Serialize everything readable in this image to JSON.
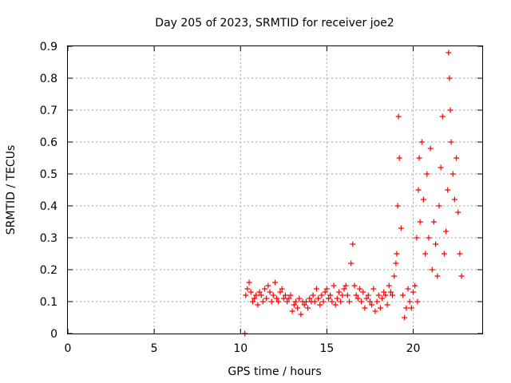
{
  "chart_data": {
    "type": "scatter",
    "title": "Day 205 of 2023, SRMTID for receiver joe2",
    "xlabel": "GPS time / hours",
    "ylabel": "SRMTID / TECUs",
    "xlim": [
      0,
      24
    ],
    "ylim": [
      0,
      0.9
    ],
    "xticks": [
      "0",
      "5",
      "10",
      "15",
      "20"
    ],
    "yticks": [
      "0",
      "0.1",
      "0.2",
      "0.3",
      "0.4",
      "0.5",
      "0.6",
      "0.7",
      "0.8",
      "0.9"
    ],
    "grid": true,
    "marker": "+",
    "series": [
      {
        "name": "SRMTID",
        "color": "#ff0000",
        "x": [
          10.25,
          10.3,
          10.4,
          10.5,
          10.6,
          10.7,
          10.8,
          10.9,
          11.0,
          11.1,
          11.2,
          11.3,
          11.4,
          11.5,
          11.6,
          11.7,
          11.8,
          11.9,
          12.0,
          12.1,
          12.2,
          12.3,
          12.4,
          12.5,
          12.6,
          12.7,
          12.8,
          12.9,
          13.0,
          13.1,
          13.2,
          13.3,
          13.4,
          13.5,
          13.6,
          13.7,
          13.8,
          13.9,
          14.0,
          14.1,
          14.2,
          14.3,
          14.4,
          14.5,
          14.6,
          14.7,
          14.8,
          14.9,
          15.0,
          15.1,
          15.2,
          15.3,
          15.4,
          15.5,
          15.6,
          15.7,
          15.8,
          15.9,
          16.0,
          16.1,
          16.2,
          16.3,
          16.4,
          16.5,
          16.6,
          16.7,
          16.8,
          16.9,
          17.0,
          17.1,
          17.2,
          17.3,
          17.4,
          17.5,
          17.6,
          17.7,
          17.8,
          17.9,
          18.0,
          18.1,
          18.2,
          18.3,
          18.4,
          18.5,
          18.6,
          18.7,
          18.8,
          18.9,
          19.0,
          19.05,
          19.1,
          19.15,
          19.2,
          19.3,
          19.4,
          19.5,
          19.6,
          19.7,
          19.8,
          19.9,
          20.0,
          20.1,
          20.2,
          20.25,
          20.3,
          20.35,
          20.4,
          20.5,
          20.6,
          20.7,
          20.8,
          20.9,
          21.0,
          21.1,
          21.2,
          21.3,
          21.4,
          21.5,
          21.6,
          21.7,
          21.8,
          21.9,
          22.0,
          22.05,
          22.1,
          22.15,
          22.2,
          22.3,
          22.4,
          22.5,
          22.6,
          22.7,
          22.8
        ],
        "y": [
          0.0,
          0.12,
          0.14,
          0.16,
          0.13,
          0.1,
          0.11,
          0.12,
          0.09,
          0.13,
          0.12,
          0.1,
          0.14,
          0.11,
          0.15,
          0.13,
          0.1,
          0.12,
          0.16,
          0.11,
          0.1,
          0.13,
          0.14,
          0.11,
          0.12,
          0.1,
          0.11,
          0.12,
          0.07,
          0.09,
          0.1,
          0.08,
          0.11,
          0.06,
          0.1,
          0.09,
          0.1,
          0.08,
          0.11,
          0.1,
          0.12,
          0.1,
          0.14,
          0.11,
          0.09,
          0.12,
          0.1,
          0.13,
          0.14,
          0.11,
          0.12,
          0.1,
          0.15,
          0.09,
          0.11,
          0.13,
          0.1,
          0.12,
          0.14,
          0.15,
          0.12,
          0.1,
          0.22,
          0.28,
          0.15,
          0.12,
          0.11,
          0.14,
          0.1,
          0.13,
          0.08,
          0.11,
          0.12,
          0.1,
          0.09,
          0.14,
          0.07,
          0.1,
          0.12,
          0.08,
          0.11,
          0.13,
          0.12,
          0.09,
          0.15,
          0.13,
          0.12,
          0.18,
          0.22,
          0.25,
          0.4,
          0.68,
          0.55,
          0.33,
          0.12,
          0.05,
          0.08,
          0.14,
          0.1,
          0.08,
          0.13,
          0.15,
          0.3,
          0.1,
          0.45,
          0.55,
          0.35,
          0.6,
          0.42,
          0.25,
          0.5,
          0.3,
          0.58,
          0.2,
          0.35,
          0.28,
          0.18,
          0.4,
          0.52,
          0.68,
          0.25,
          0.32,
          0.45,
          0.88,
          0.8,
          0.7,
          0.6,
          0.5,
          0.42,
          0.55,
          0.38,
          0.25,
          0.18
        ]
      }
    ]
  }
}
